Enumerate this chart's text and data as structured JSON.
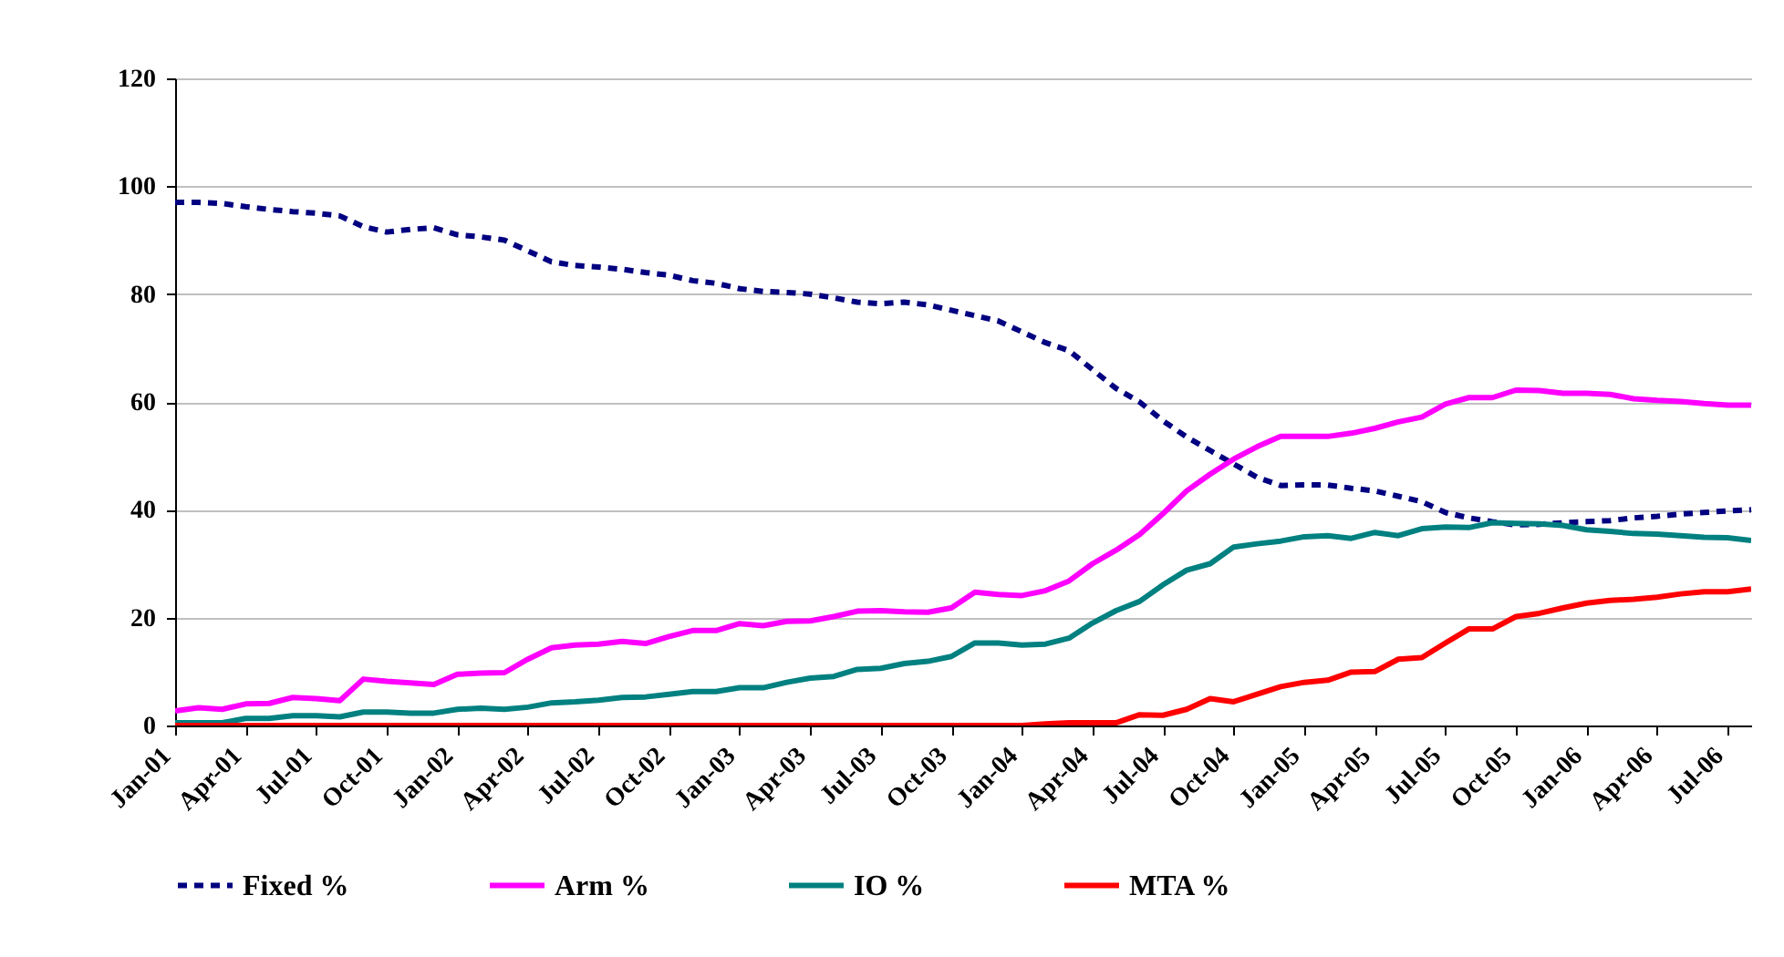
{
  "chart_data": {
    "type": "line",
    "categories": [
      "Jan-01",
      null,
      null,
      "Apr-01",
      null,
      null,
      "Jul-01",
      null,
      null,
      "Oct-01",
      null,
      null,
      "Jan-02",
      null,
      null,
      "Apr-02",
      null,
      null,
      "Jul-02",
      null,
      null,
      "Oct-02",
      null,
      null,
      "Jan-03",
      null,
      null,
      "Apr-03",
      null,
      null,
      "Jul-03",
      null,
      null,
      "Oct-03",
      null,
      null,
      "Jan-04",
      null,
      null,
      "Apr-04",
      null,
      null,
      "Jul-04",
      null,
      null,
      "Oct-04",
      null,
      null,
      "Jan-05",
      null,
      null,
      "Apr-05",
      null,
      null,
      "Jul-05",
      null,
      null,
      "Oct-05",
      null,
      null,
      "Jan-06",
      null,
      null,
      "Apr-06",
      null,
      null,
      "Jul-06",
      null
    ],
    "series": [
      {
        "name": "Fixed %",
        "color": "#000080",
        "line_style": "dashed",
        "values": [
          97,
          97,
          96.8,
          96.2,
          95.7,
          95.3,
          95,
          94.5,
          92.5,
          91.5,
          92,
          92.3,
          91,
          90.6,
          90,
          88,
          86,
          85.3,
          85,
          84.6,
          84,
          83.5,
          82.5,
          82,
          81,
          80.5,
          80.3,
          80,
          79.3,
          78.5,
          78.2,
          78.5,
          78,
          77,
          76,
          75,
          73,
          71,
          69.5,
          66,
          62.5,
          60,
          56.5,
          53.5,
          51,
          48.5,
          46,
          44.5,
          44.6,
          44.6,
          44,
          43.5,
          42.5,
          41.5,
          39.5,
          38.5,
          37.8,
          37.2,
          37.3,
          37.6,
          37.8,
          38,
          38.5,
          38.8,
          39.2,
          39.5,
          39.8,
          40
        ]
      },
      {
        "name": "Arm %",
        "color": "#ff00ff",
        "line_style": "solid",
        "values": [
          2.7,
          3.3,
          3.0,
          4.0,
          4.1,
          5.2,
          5.0,
          4.6,
          8.6,
          8.2,
          7.9,
          7.6,
          9.5,
          9.7,
          9.8,
          12.3,
          14.4,
          14.9,
          15.1,
          15.6,
          15.2,
          16.5,
          17.6,
          17.6,
          18.9,
          18.5,
          19.3,
          19.4,
          20.2,
          21.2,
          21.3,
          21.1,
          21,
          21.8,
          24.7,
          24.3,
          24.1,
          25,
          26.8,
          30,
          32.5,
          35.4,
          39.3,
          43.5,
          46.6,
          49.4,
          51.7,
          53.6,
          53.6,
          53.6,
          54.2,
          55.1,
          56.3,
          57.2,
          59.6,
          60.8,
          60.8,
          62.2,
          62.1,
          61.6,
          61.6,
          61.4,
          60.6,
          60.3,
          60.1,
          59.7,
          59.4,
          59.4
        ]
      },
      {
        "name": "IO %",
        "color": "#008080",
        "line_style": "solid",
        "values": [
          0.5,
          0.5,
          0.5,
          1.3,
          1.3,
          1.8,
          1.8,
          1.6,
          2.5,
          2.5,
          2.3,
          2.3,
          3.0,
          3.2,
          3.0,
          3.4,
          4.2,
          4.4,
          4.7,
          5.2,
          5.3,
          5.8,
          6.3,
          6.3,
          7.0,
          7.0,
          8.0,
          8.8,
          9.1,
          10.4,
          10.6,
          11.5,
          11.9,
          12.8,
          15.3,
          15.3,
          14.9,
          15.1,
          16.2,
          19,
          21.3,
          23,
          26.1,
          28.8,
          30,
          33.1,
          33.7,
          34.2,
          35,
          35.2,
          34.7,
          35.8,
          35.2,
          36.5,
          36.8,
          36.7,
          37.6,
          37.5,
          37.4,
          37.1,
          36.3,
          36,
          35.6,
          35.5,
          35.2,
          34.9,
          34.8,
          34.3
        ]
      },
      {
        "name": "MTA %",
        "color": "#ff0000",
        "line_style": "solid",
        "values": [
          0,
          0,
          0,
          0,
          0,
          0,
          0,
          0,
          0,
          0,
          0,
          0,
          0,
          0,
          0,
          0,
          0,
          0,
          0,
          0,
          0,
          0,
          0,
          0,
          0,
          0,
          0,
          0,
          0,
          0,
          0,
          0,
          0,
          0,
          0,
          0,
          0,
          0.3,
          0.5,
          0.5,
          0.5,
          2.0,
          1.9,
          3.0,
          5.0,
          4.4,
          5.8,
          7.2,
          8.0,
          8.4,
          9.9,
          10.0,
          12.3,
          12.6,
          15.3,
          17.9,
          17.9,
          20.2,
          20.8,
          21.8,
          22.7,
          23.2,
          23.4,
          23.8,
          24.4,
          24.8,
          24.8,
          25.3
        ]
      }
    ],
    "ylim": [
      0,
      120
    ],
    "yticks": [
      0,
      20,
      40,
      60,
      80,
      100,
      120
    ],
    "grid": "y",
    "legend": "bottom",
    "marker": "none"
  }
}
